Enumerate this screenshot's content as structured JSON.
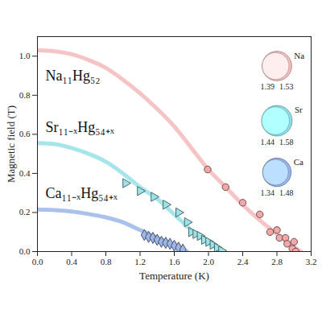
{
  "chart_data": {
    "type": "line",
    "x_label": "Temperature (K)",
    "y_label": "Magnetic field (T)",
    "xlim": [
      0,
      3.2
    ],
    "ylim": [
      0,
      1.1
    ],
    "xticks": [
      {
        "value": 0,
        "label": "0.0"
      },
      {
        "value": 0.4,
        "label": "0.4"
      },
      {
        "value": 0.8,
        "label": "0.8"
      },
      {
        "value": 1.2,
        "label": "1.2"
      },
      {
        "value": 1.6,
        "label": "1.6"
      },
      {
        "value": 2,
        "label": "2.0"
      },
      {
        "value": 2.4,
        "label": "2.4"
      },
      {
        "value": 2.8,
        "label": "2.8"
      },
      {
        "value": 3.2,
        "label": "3.2"
      }
    ],
    "yticks": [
      {
        "value": 0,
        "label": "0.0"
      },
      {
        "value": 0.2,
        "label": "0.2"
      },
      {
        "value": 0.4,
        "label": "0.4"
      },
      {
        "value": 0.6,
        "label": "0.6"
      },
      {
        "value": 0.8,
        "label": "0.8"
      },
      {
        "value": 1,
        "label": "1.0"
      }
    ],
    "grid": false,
    "series": [
      {
        "name": "Na₁₁Hg₅₂",
        "type": "line",
        "color": "#f6c4c4",
        "x": [
          0,
          0.2,
          0.4,
          0.6,
          0.8,
          1.0,
          1.2,
          1.4,
          1.6,
          1.8,
          2.0,
          2.2,
          2.4,
          2.6,
          2.8,
          3.0,
          3.08
        ],
        "values": [
          1.03,
          1.025,
          1.01,
          0.98,
          0.94,
          0.88,
          0.81,
          0.73,
          0.64,
          0.53,
          0.42,
          0.33,
          0.24,
          0.16,
          0.09,
          0.025,
          0
        ]
      },
      {
        "name": "Sr₁₁₋ₓHg₅₄₊ₓ",
        "type": "line",
        "color": "#a6e6ea",
        "x": [
          0,
          0.2,
          0.4,
          0.6,
          0.8,
          1.0,
          1.2,
          1.4,
          1.6,
          1.8,
          2.0,
          2.18
        ],
        "values": [
          0.555,
          0.55,
          0.53,
          0.5,
          0.46,
          0.4,
          0.33,
          0.27,
          0.19,
          0.11,
          0.045,
          0
        ]
      },
      {
        "name": "Ca₁₁₋ₓHg₅₄₊ₓ",
        "type": "line",
        "color": "#a9c2ec",
        "x": [
          0,
          0.2,
          0.4,
          0.6,
          0.8,
          1.0,
          1.2,
          1.4,
          1.6,
          1.75
        ],
        "values": [
          0.215,
          0.212,
          0.205,
          0.192,
          0.175,
          0.15,
          0.11,
          0.07,
          0.035,
          0
        ]
      },
      {
        "type": "scatter",
        "marker": "circle",
        "color": "#f0a8a8",
        "x": [
          1.99,
          2.2,
          2.4,
          2.6,
          2.72,
          2.8,
          2.83,
          2.9,
          2.92,
          2.98,
          3.0,
          3.02
        ],
        "values": [
          0.42,
          0.33,
          0.25,
          0.19,
          0.1,
          0.11,
          0.07,
          0.07,
          0.04,
          0.015,
          0.05,
          0
        ]
      },
      {
        "type": "scatter",
        "marker": "triangle-right",
        "color": "#9fe3e8",
        "x": [
          1.03,
          1.2,
          1.36,
          1.5,
          1.65,
          1.75,
          1.8,
          1.85,
          1.9,
          1.95,
          2.0,
          2.05,
          2.1,
          2.15
        ],
        "values": [
          0.35,
          0.31,
          0.28,
          0.24,
          0.2,
          0.15,
          0.1,
          0.09,
          0.08,
          0.06,
          0.05,
          0.035,
          0.02,
          0.005
        ]
      },
      {
        "type": "scatter",
        "marker": "diamond",
        "color": "#9db6e6",
        "x": [
          1.25,
          1.3,
          1.35,
          1.4,
          1.45,
          1.5,
          1.55,
          1.6,
          1.65,
          1.7
        ],
        "values": [
          0.085,
          0.075,
          0.07,
          0.06,
          0.05,
          0.045,
          0.04,
          0.03,
          0.02,
          0.01
        ]
      }
    ],
    "insets": [
      {
        "label": "Na",
        "inner": 1.39,
        "outer": 1.53,
        "color": "#f4c0c0"
      },
      {
        "label": "Sr",
        "inner": 1.44,
        "outer": 1.58,
        "color": "#8fe0e8"
      },
      {
        "label": "Ca",
        "inner": 1.34,
        "outer": 1.48,
        "color": "#98b4ea"
      }
    ]
  }
}
